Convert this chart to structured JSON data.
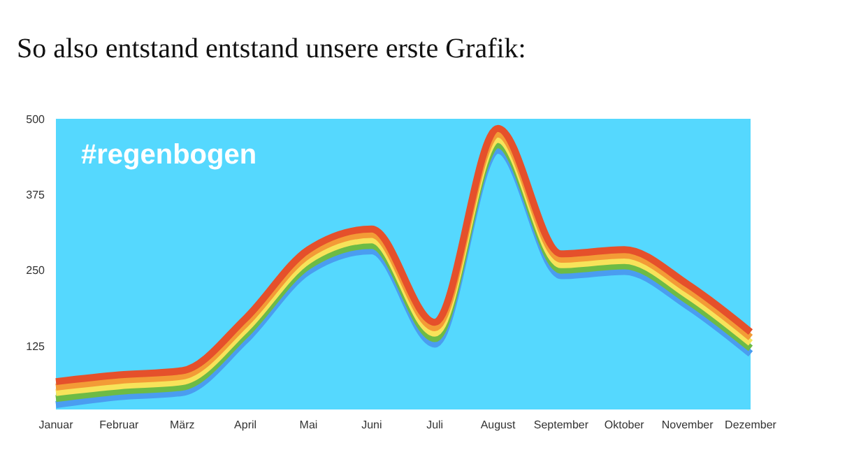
{
  "chart_data": {
    "type": "line",
    "title": "So also entstand entstand unsere erste Grafik:",
    "annotations": [
      "#regenbogen"
    ],
    "categories": [
      "Januar",
      "Februar",
      "März",
      "April",
      "Mai",
      "Juni",
      "Juli",
      "August",
      "September",
      "Oktober",
      "November",
      "Dezember"
    ],
    "series": [
      {
        "color": "#e5502b",
        "values": [
          66,
          77,
          84,
          170,
          284,
          318,
          164,
          484,
          277,
          284,
          227,
          148
        ]
      },
      {
        "color": "#f39b36",
        "values": [
          57,
          68,
          75,
          161,
          275,
          309,
          155,
          475,
          268,
          275,
          218,
          139
        ]
      },
      {
        "color": "#f7e35a",
        "values": [
          48,
          59,
          66,
          152,
          266,
          300,
          146,
          466,
          259,
          266,
          209,
          130
        ]
      },
      {
        "color": "#6dbb45",
        "values": [
          38,
          50,
          57,
          143,
          257,
          291,
          137,
          457,
          250,
          257,
          200,
          121
        ]
      },
      {
        "color": "#4a9df0",
        "values": [
          28,
          41,
          48,
          134,
          248,
          282,
          128,
          448,
          241,
          248,
          191,
          112
        ]
      }
    ],
    "ylim": [
      20,
      500
    ],
    "yticks": [
      125,
      250,
      375,
      500
    ],
    "grid": false,
    "legend": false,
    "marker": "none",
    "line_style": "solid"
  }
}
